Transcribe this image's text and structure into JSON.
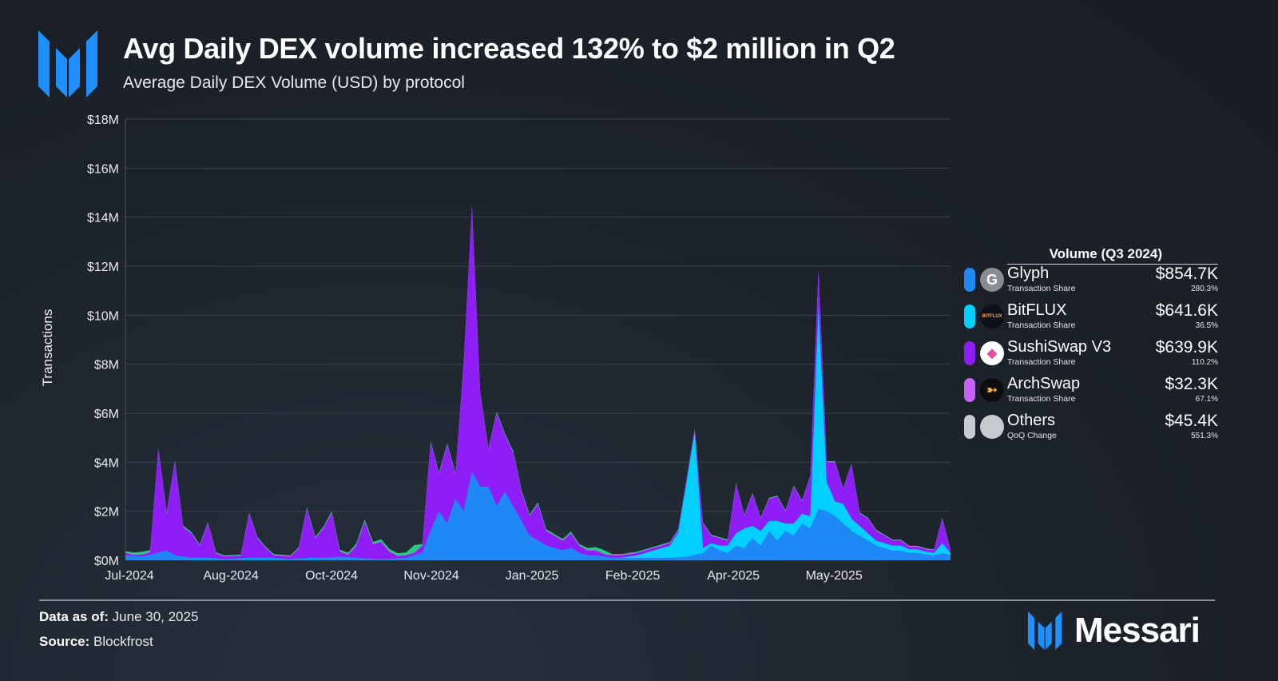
{
  "header": {
    "title": "Avg Daily DEX volume increased 132% to $2 million in Q2",
    "subtitle": "Average Daily DEX Volume (USD) by protocol"
  },
  "legend": {
    "header": "Volume (Q3 2024)",
    "items": [
      {
        "name": "Glyph",
        "meta": "Transaction Share",
        "value": "$854.7K",
        "change": "280.3%",
        "color": "#1e88f5",
        "icon": "glyph-logo-icon"
      },
      {
        "name": "BitFLUX",
        "meta": "Transaction Share",
        "value": "$641.6K",
        "change": "36.5%",
        "color": "#00cfff",
        "icon": "bitflux-logo-icon",
        "icon_text": "BITFLUX"
      },
      {
        "name": "SushiSwap V3",
        "meta": "Transaction Share",
        "value": "$639.9K",
        "change": "110.2%",
        "color": "#8e1ef5",
        "icon": "sushiswap-logo-icon"
      },
      {
        "name": "ArchSwap",
        "meta": "Transaction Share",
        "value": "$32.3K",
        "change": "67.1%",
        "color": "#c862f5",
        "icon": "archswap-logo-icon"
      },
      {
        "name": "Others",
        "meta": "QoQ Change",
        "value": "$45.4K",
        "change": "551.3%",
        "color": "#c7cbd0",
        "icon": "others-icon"
      }
    ]
  },
  "footer": {
    "data_as_of_label": "Data as of:",
    "data_as_of": "June 30, 2025",
    "source_label": "Source:",
    "source": "Blockfrost",
    "brand": "Messari"
  },
  "chart_data": {
    "type": "area",
    "stacked": true,
    "title": "Average Daily DEX Volume (USD) by protocol",
    "xlabel": "",
    "ylabel": "Transactions",
    "ylim": [
      0,
      18000000
    ],
    "yticks": [
      0,
      2000000,
      4000000,
      6000000,
      8000000,
      10000000,
      12000000,
      14000000,
      16000000,
      18000000
    ],
    "ytick_labels": [
      "$0M",
      "$2M",
      "$4M",
      "$6M",
      "$8M",
      "$10M",
      "$12M",
      "$14M",
      "$16M",
      "$18M"
    ],
    "xtick_labels": [
      "Jul-2024",
      "Aug-2024",
      "Oct-2024",
      "Nov-2024",
      "Jan-2025",
      "Feb-2025",
      "Apr-2025",
      "May-2025"
    ],
    "grid": true,
    "legend_position": "right",
    "x_index_range": [
      0,
      100
    ],
    "xtick_positions": [
      0,
      12.3,
      24.5,
      36.6,
      48.8,
      61,
      73.2,
      85.4
    ],
    "series": [
      {
        "name": "Glyph",
        "color": "#1e88f5",
        "points": [
          [
            0,
            0.2
          ],
          [
            2,
            0.15
          ],
          [
            4,
            0.3
          ],
          [
            5,
            0.4
          ],
          [
            6,
            0.2
          ],
          [
            8,
            0.1
          ],
          [
            10,
            0.1
          ],
          [
            12,
            0.05
          ],
          [
            15,
            0.1
          ],
          [
            18,
            0.1
          ],
          [
            20,
            0.05
          ],
          [
            22,
            0.1
          ],
          [
            24,
            0.1
          ],
          [
            26,
            0.15
          ],
          [
            28,
            0.1
          ],
          [
            30,
            0.05
          ],
          [
            32,
            0.05
          ],
          [
            34,
            0.1
          ],
          [
            36,
            0.3
          ],
          [
            37,
            1.2
          ],
          [
            38,
            2.0
          ],
          [
            39,
            1.5
          ],
          [
            40,
            2.5
          ],
          [
            41,
            2.0
          ],
          [
            42,
            3.6
          ],
          [
            43,
            3.0
          ],
          [
            44,
            3.0
          ],
          [
            45,
            2.2
          ],
          [
            46,
            2.8
          ],
          [
            47,
            2.2
          ],
          [
            48,
            1.6
          ],
          [
            49,
            1.0
          ],
          [
            50,
            0.8
          ],
          [
            51,
            0.6
          ],
          [
            52,
            0.5
          ],
          [
            53,
            0.4
          ],
          [
            54,
            0.5
          ],
          [
            55,
            0.3
          ],
          [
            56,
            0.2
          ],
          [
            57,
            0.2
          ],
          [
            58,
            0.15
          ],
          [
            59,
            0.1
          ],
          [
            60,
            0.1
          ],
          [
            62,
            0.1
          ],
          [
            64,
            0.1
          ],
          [
            66,
            0.1
          ],
          [
            68,
            0.15
          ],
          [
            70,
            0.3
          ],
          [
            71,
            0.6
          ],
          [
            72,
            0.4
          ],
          [
            73,
            0.3
          ],
          [
            74,
            0.6
          ],
          [
            75,
            0.5
          ],
          [
            76,
            0.9
          ],
          [
            77,
            0.6
          ],
          [
            78,
            1.2
          ],
          [
            79,
            0.8
          ],
          [
            80,
            1.2
          ],
          [
            81,
            1.0
          ],
          [
            82,
            1.5
          ],
          [
            83,
            1.3
          ],
          [
            84,
            2.1
          ],
          [
            85,
            2.0
          ],
          [
            86,
            1.8
          ],
          [
            87,
            1.5
          ],
          [
            88,
            1.2
          ],
          [
            89,
            1.0
          ],
          [
            90,
            0.8
          ],
          [
            91,
            0.6
          ],
          [
            92,
            0.5
          ],
          [
            93,
            0.4
          ],
          [
            94,
            0.4
          ],
          [
            95,
            0.3
          ],
          [
            96,
            0.3
          ],
          [
            97,
            0.25
          ],
          [
            98,
            0.2
          ],
          [
            99,
            0.3
          ],
          [
            100,
            0.2
          ]
        ]
      },
      {
        "name": "BitFLUX",
        "color": "#00cfff",
        "points": [
          [
            0,
            0
          ],
          [
            60,
            0
          ],
          [
            62,
            0.1
          ],
          [
            64,
            0.3
          ],
          [
            66,
            0.5
          ],
          [
            67,
            1.0
          ],
          [
            68,
            3.0
          ],
          [
            69,
            5.0
          ],
          [
            70,
            0.2
          ],
          [
            71,
            0.1
          ],
          [
            72,
            0.2
          ],
          [
            73,
            0.3
          ],
          [
            74,
            0.5
          ],
          [
            75,
            0.8
          ],
          [
            76,
            0.5
          ],
          [
            77,
            0.6
          ],
          [
            78,
            0.4
          ],
          [
            79,
            0.8
          ],
          [
            80,
            0.3
          ],
          [
            81,
            0.5
          ],
          [
            82,
            0.4
          ],
          [
            83,
            0.5
          ],
          [
            84,
            8.2
          ],
          [
            85,
            1.2
          ],
          [
            86,
            0.6
          ],
          [
            87,
            0.8
          ],
          [
            88,
            0.5
          ],
          [
            89,
            0.4
          ],
          [
            90,
            0.3
          ],
          [
            91,
            0.2
          ],
          [
            92,
            0.2
          ],
          [
            93,
            0.2
          ],
          [
            94,
            0.2
          ],
          [
            95,
            0.15
          ],
          [
            96,
            0.15
          ],
          [
            97,
            0.1
          ],
          [
            98,
            0.1
          ],
          [
            99,
            0.4
          ],
          [
            100,
            0.1
          ]
        ]
      },
      {
        "name": "SushiSwap V3",
        "color": "#8e1ef5",
        "points": [
          [
            0,
            0.1
          ],
          [
            1,
            0.05
          ],
          [
            3,
            0.1
          ],
          [
            4,
            4.2
          ],
          [
            5,
            1.5
          ],
          [
            6,
            3.8
          ],
          [
            7,
            1.2
          ],
          [
            8,
            1.0
          ],
          [
            9,
            0.5
          ],
          [
            10,
            1.4
          ],
          [
            11,
            0.2
          ],
          [
            12,
            0.1
          ],
          [
            13,
            0.1
          ],
          [
            14,
            0.1
          ],
          [
            15,
            1.8
          ],
          [
            16,
            0.8
          ],
          [
            17,
            0.4
          ],
          [
            18,
            0.1
          ],
          [
            19,
            0.1
          ],
          [
            20,
            0.1
          ],
          [
            21,
            0.4
          ],
          [
            22,
            2.0
          ],
          [
            23,
            0.8
          ],
          [
            24,
            1.2
          ],
          [
            25,
            1.8
          ],
          [
            26,
            0.2
          ],
          [
            27,
            0.1
          ],
          [
            28,
            0.5
          ],
          [
            29,
            1.5
          ],
          [
            30,
            0.6
          ],
          [
            31,
            0.7
          ],
          [
            32,
            0.3
          ],
          [
            33,
            0.1
          ],
          [
            34,
            0.1
          ],
          [
            35,
            0.1
          ],
          [
            36,
            0.3
          ],
          [
            37,
            3.6
          ],
          [
            38,
            1.5
          ],
          [
            39,
            3.2
          ],
          [
            40,
            1.0
          ],
          [
            41,
            6.0
          ],
          [
            42,
            10.8
          ],
          [
            43,
            3.8
          ],
          [
            44,
            1.5
          ],
          [
            45,
            3.8
          ],
          [
            46,
            2.3
          ],
          [
            47,
            2.2
          ],
          [
            48,
            1.2
          ],
          [
            49,
            0.8
          ],
          [
            50,
            1.5
          ],
          [
            51,
            0.6
          ],
          [
            52,
            0.5
          ],
          [
            53,
            0.4
          ],
          [
            54,
            0.6
          ],
          [
            55,
            0.3
          ],
          [
            56,
            0.2
          ],
          [
            57,
            0.2
          ],
          [
            58,
            0.1
          ],
          [
            59,
            0.1
          ],
          [
            60,
            0.1
          ],
          [
            62,
            0.1
          ],
          [
            64,
            0.1
          ],
          [
            66,
            0.1
          ],
          [
            68,
            0.1
          ],
          [
            69,
            0.1
          ],
          [
            70,
            1.0
          ],
          [
            71,
            0.3
          ],
          [
            72,
            0.3
          ],
          [
            73,
            0.2
          ],
          [
            74,
            2.0
          ],
          [
            75,
            0.5
          ],
          [
            76,
            1.3
          ],
          [
            77,
            0.5
          ],
          [
            78,
            0.9
          ],
          [
            79,
            1.0
          ],
          [
            80,
            0.5
          ],
          [
            81,
            1.5
          ],
          [
            82,
            0.5
          ],
          [
            83,
            1.6
          ],
          [
            84,
            1.5
          ],
          [
            85,
            0.8
          ],
          [
            86,
            1.6
          ],
          [
            87,
            0.6
          ],
          [
            88,
            2.2
          ],
          [
            89,
            0.5
          ],
          [
            90,
            0.6
          ],
          [
            91,
            0.4
          ],
          [
            92,
            0.3
          ],
          [
            93,
            0.2
          ],
          [
            94,
            0.2
          ],
          [
            95,
            0.1
          ],
          [
            96,
            0.1
          ],
          [
            97,
            0.1
          ],
          [
            98,
            0.1
          ],
          [
            99,
            1.0
          ],
          [
            100,
            0.1
          ]
        ]
      },
      {
        "name": "ArchSwap",
        "color": "#c862f5",
        "points": [
          [
            0,
            0.02
          ],
          [
            50,
            0.02
          ],
          [
            100,
            0.02
          ]
        ]
      },
      {
        "name": "Others",
        "color": "#1fcf7a",
        "points": [
          [
            0,
            0.05
          ],
          [
            2,
            0.1
          ],
          [
            4,
            0.05
          ],
          [
            10,
            0.03
          ],
          [
            20,
            0.03
          ],
          [
            34,
            0.1
          ],
          [
            35,
            0.3
          ],
          [
            36,
            0.05
          ],
          [
            55,
            0.05
          ],
          [
            58,
            0.15
          ],
          [
            59,
            0.03
          ],
          [
            100,
            0.02
          ]
        ]
      }
    ],
    "values_unit": "USD millions"
  }
}
